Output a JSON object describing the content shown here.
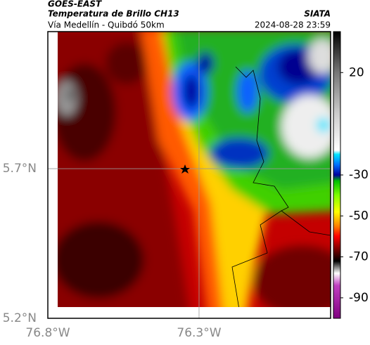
{
  "header": {
    "source": "GOES-EAST",
    "title": "Temperatura de Brillo CH13",
    "agency": "SIATA",
    "subtitle": "Vía Medellín - Quibdó 50km",
    "timestamp": "2024-08-28 23:59"
  },
  "map": {
    "xlim": [
      -76.8,
      -75.865
    ],
    "ylim": [
      5.2,
      6.158
    ],
    "xticks": [
      {
        "value": -76.8,
        "label": "76.8°W"
      },
      {
        "value": -76.3,
        "label": "76.3°W"
      }
    ],
    "yticks": [
      {
        "value": 5.2,
        "label": "5.2°N"
      },
      {
        "value": 5.7,
        "label": "5.7°N"
      }
    ],
    "grid": true
  },
  "colorbar": {
    "lim": [
      -100,
      40
    ],
    "ticks": [
      20,
      -30,
      -50,
      -70,
      -90
    ],
    "stops": [
      {
        "value": 40,
        "color": "#000000"
      },
      {
        "value": 20,
        "color": "#777777"
      },
      {
        "value": 0,
        "color": "#cccccc"
      },
      {
        "value": -18,
        "color": "#ffffff"
      },
      {
        "value": -20,
        "color": "#00e5ff"
      },
      {
        "value": -25,
        "color": "#0070ff"
      },
      {
        "value": -30,
        "color": "#0000a0"
      },
      {
        "value": -33,
        "color": "#00c000"
      },
      {
        "value": -40,
        "color": "#80ff00"
      },
      {
        "value": -48,
        "color": "#ffff00"
      },
      {
        "value": -55,
        "color": "#ff8000"
      },
      {
        "value": -60,
        "color": "#ff0000"
      },
      {
        "value": -66,
        "color": "#800000"
      },
      {
        "value": -72,
        "color": "#000000"
      },
      {
        "value": -78,
        "color": "#ffffff"
      },
      {
        "value": -84,
        "color": "#c040c0"
      },
      {
        "value": -100,
        "color": "#800080"
      }
    ]
  }
}
